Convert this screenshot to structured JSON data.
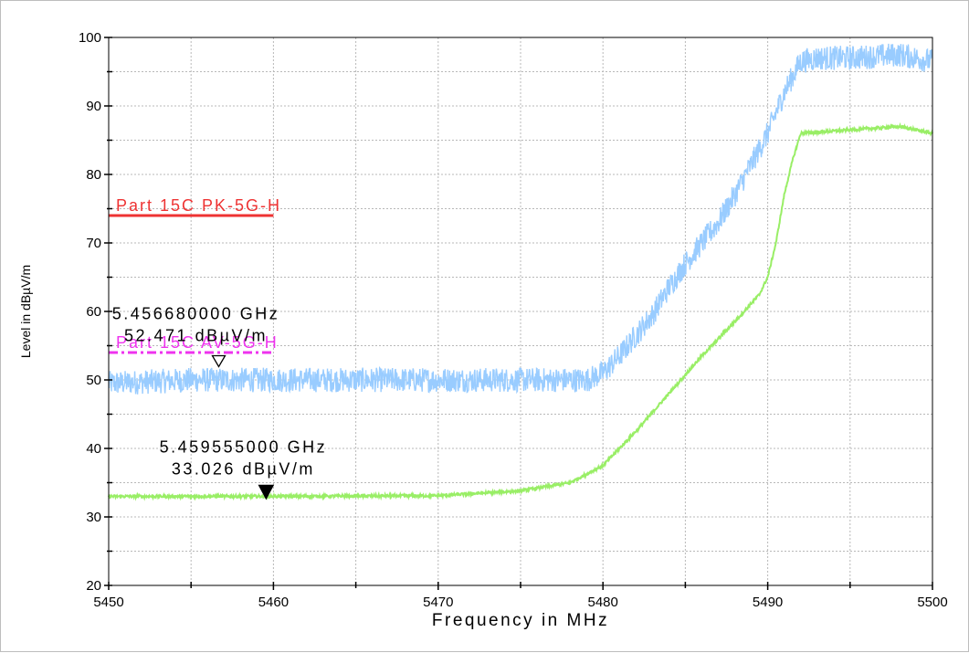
{
  "chart_data": {
    "type": "line",
    "xlabel": "Frequency in MHz",
    "ylabel": "Level in dBµV/m",
    "xlim": [
      5450,
      5500
    ],
    "ylim": [
      20,
      100
    ],
    "x_ticks": [
      5450,
      5460,
      5470,
      5480,
      5490,
      5500
    ],
    "y_ticks": [
      20,
      30,
      40,
      50,
      60,
      70,
      80,
      90,
      100
    ],
    "x_tick_labels": [
      "5450",
      "5460",
      "5470",
      "5480",
      "5490",
      "5500"
    ],
    "y_tick_labels": [
      "20",
      "30",
      "40",
      "50",
      "60",
      "70",
      "80",
      "90",
      "100"
    ],
    "grid": true,
    "series": [
      {
        "color": "#99ccff",
        "noise": 1.8,
        "points": [
          [
            5450,
            49.5
          ],
          [
            5455,
            50.0
          ],
          [
            5460,
            50.0
          ],
          [
            5465,
            50.0
          ],
          [
            5470,
            50.0
          ],
          [
            5475,
            50.0
          ],
          [
            5479,
            50.0
          ],
          [
            5480,
            51.0
          ],
          [
            5481,
            53.5
          ],
          [
            5482,
            56.5
          ],
          [
            5483,
            59.5
          ],
          [
            5484,
            63.5
          ],
          [
            5485,
            67.0
          ],
          [
            5486,
            70.0
          ],
          [
            5487,
            73.0
          ],
          [
            5488,
            77.0
          ],
          [
            5489,
            81.5
          ],
          [
            5490,
            86.0
          ],
          [
            5491,
            92.0
          ],
          [
            5492,
            96.5
          ],
          [
            5493,
            97.0
          ],
          [
            5495,
            97.0
          ],
          [
            5498,
            97.5
          ],
          [
            5500,
            96.5
          ]
        ]
      },
      {
        "color": "#99ee66",
        "noise": 0.2,
        "points": [
          [
            5450,
            33.0
          ],
          [
            5460,
            33.0
          ],
          [
            5470,
            33.1
          ],
          [
            5475,
            33.8
          ],
          [
            5478,
            35.0
          ],
          [
            5480,
            37.5
          ],
          [
            5482,
            42.5
          ],
          [
            5484,
            48.0
          ],
          [
            5486,
            53.5
          ],
          [
            5488,
            58.5
          ],
          [
            5489.5,
            62.5
          ],
          [
            5490,
            65.0
          ],
          [
            5490.5,
            70.0
          ],
          [
            5491,
            77.0
          ],
          [
            5491.5,
            82.0
          ],
          [
            5492,
            86.0
          ],
          [
            5495,
            86.5
          ],
          [
            5498,
            87.0
          ],
          [
            5500,
            86.0
          ]
        ]
      }
    ],
    "limit_lines": [
      {
        "label": "Part 15C PK-5G-H",
        "y": 74,
        "x_start": 5450,
        "x_end": 5460,
        "color": "#ee3333",
        "style": "solid"
      },
      {
        "label": "Part 15C AV-5G-H",
        "y": 54,
        "x_start": 5450,
        "x_end": 5460,
        "color": "#ee33ee",
        "style": "dashdot"
      }
    ],
    "markers": [
      {
        "frequency_label": "5.456680000 GHz",
        "level_label": "52.471 dBµV/m",
        "x": 5456.68,
        "y": 52.471,
        "filled": false
      },
      {
        "frequency_label": "5.459555000 GHz",
        "level_label": "33.026 dBµV/m",
        "x": 5459.555,
        "y": 33.026,
        "filled": true
      }
    ]
  }
}
